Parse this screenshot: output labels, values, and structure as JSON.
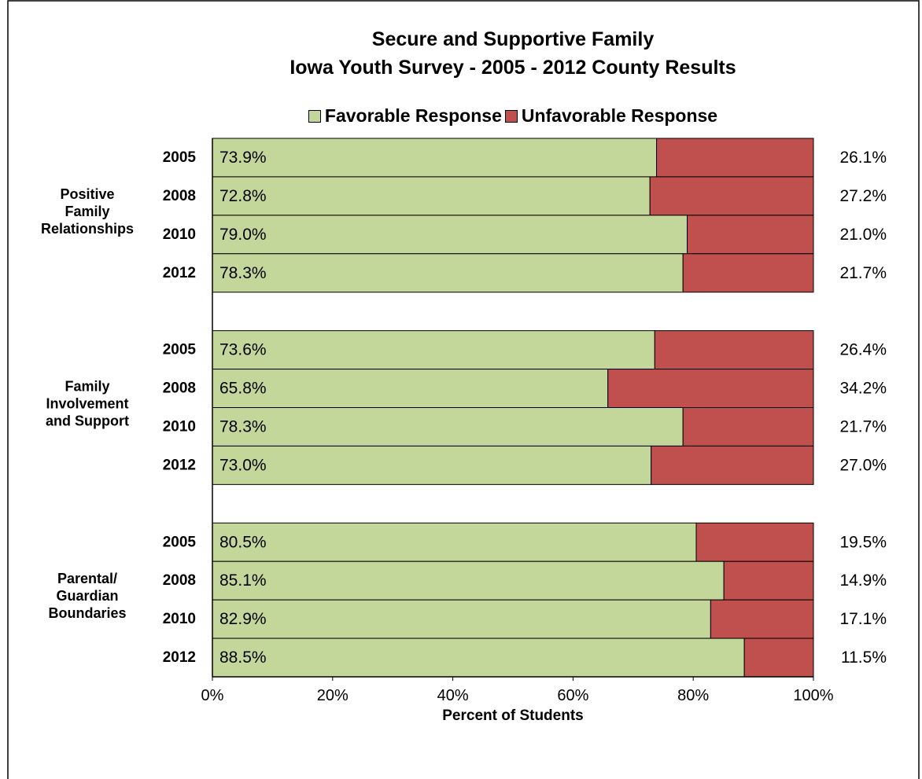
{
  "chart_data": {
    "type": "bar",
    "stacked": true,
    "orientation": "horizontal",
    "percent_stacked": true,
    "title": "Secure and Supportive Family",
    "subtitle": "Iowa Youth Survey - 2005 - 2012 County Results",
    "xlabel": "Percent of Students",
    "ylabel": "",
    "xlim": [
      0,
      100
    ],
    "x_ticks": [
      "0%",
      "20%",
      "40%",
      "60%",
      "80%",
      "100%"
    ],
    "legend_position": "top",
    "grid": false,
    "series": [
      {
        "name": "Favorable Response",
        "color": "#c4d79b"
      },
      {
        "name": "Unfavorable Response",
        "color": "#c0504d"
      }
    ],
    "groups": [
      {
        "label_lines": [
          "Positive",
          "Family",
          "Relationships"
        ],
        "bars": [
          {
            "year": "2005",
            "favorable": 73.9,
            "unfavorable": 26.1,
            "favorable_label": "73.9%",
            "unfavorable_label": "26.1%"
          },
          {
            "year": "2008",
            "favorable": 72.8,
            "unfavorable": 27.2,
            "favorable_label": "72.8%",
            "unfavorable_label": "27.2%"
          },
          {
            "year": "2010",
            "favorable": 79.0,
            "unfavorable": 21.0,
            "favorable_label": "79.0%",
            "unfavorable_label": "21.0%"
          },
          {
            "year": "2012",
            "favorable": 78.3,
            "unfavorable": 21.7,
            "favorable_label": "78.3%",
            "unfavorable_label": "21.7%"
          }
        ]
      },
      {
        "label_lines": [
          "Family",
          "Involvement",
          "and Support"
        ],
        "bars": [
          {
            "year": "2005",
            "favorable": 73.6,
            "unfavorable": 26.4,
            "favorable_label": "73.6%",
            "unfavorable_label": "26.4%"
          },
          {
            "year": "2008",
            "favorable": 65.8,
            "unfavorable": 34.2,
            "favorable_label": "65.8%",
            "unfavorable_label": "34.2%"
          },
          {
            "year": "2010",
            "favorable": 78.3,
            "unfavorable": 21.7,
            "favorable_label": "78.3%",
            "unfavorable_label": "21.7%"
          },
          {
            "year": "2012",
            "favorable": 73.0,
            "unfavorable": 27.0,
            "favorable_label": "73.0%",
            "unfavorable_label": "27.0%"
          }
        ]
      },
      {
        "label_lines": [
          "Parental/",
          "Guardian",
          "Boundaries"
        ],
        "bars": [
          {
            "year": "2005",
            "favorable": 80.5,
            "unfavorable": 19.5,
            "favorable_label": "80.5%",
            "unfavorable_label": "19.5%"
          },
          {
            "year": "2008",
            "favorable": 85.1,
            "unfavorable": 14.9,
            "favorable_label": "85.1%",
            "unfavorable_label": "14.9%"
          },
          {
            "year": "2010",
            "favorable": 82.9,
            "unfavorable": 17.1,
            "favorable_label": "82.9%",
            "unfavorable_label": "17.1%"
          },
          {
            "year": "2012",
            "favorable": 88.5,
            "unfavorable": 11.5,
            "favorable_label": "88.5%",
            "unfavorable_label": "11.5%"
          }
        ]
      }
    ]
  }
}
